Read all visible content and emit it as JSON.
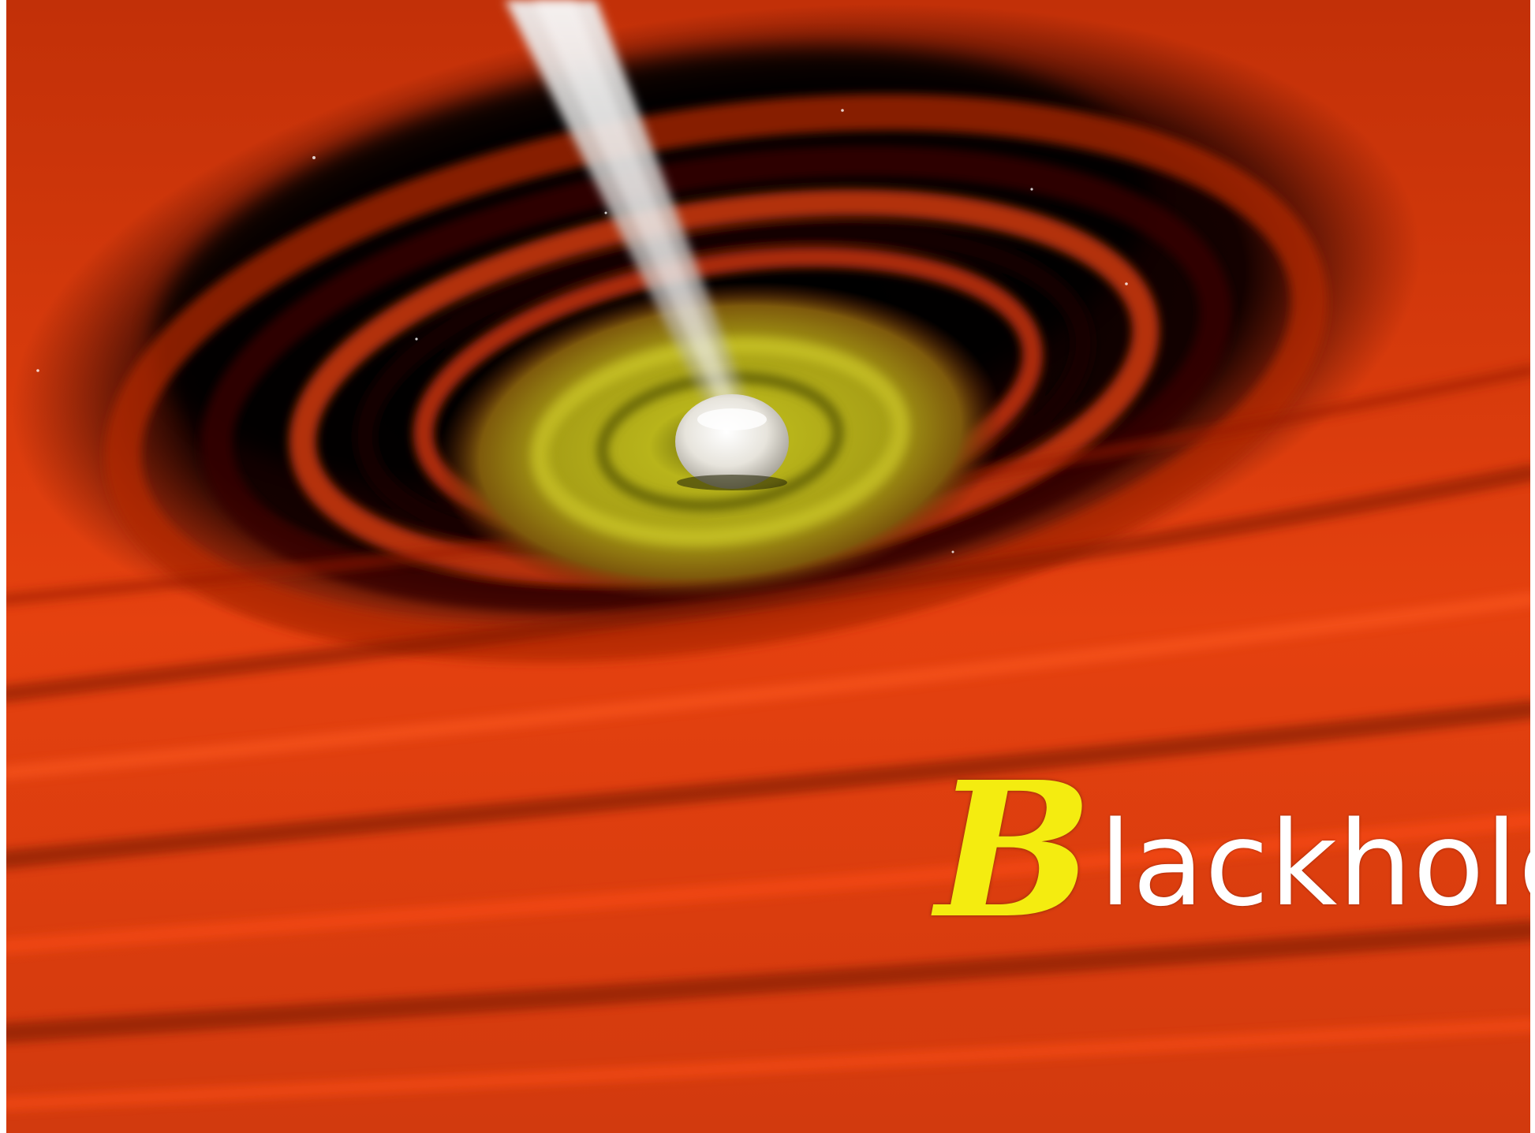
{
  "title": {
    "initial": "B",
    "rest": "lackhole"
  },
  "colors": {
    "disk_red": "#e43a0e",
    "disk_dark": "#2a0400",
    "inner_glow": "#c9c11a",
    "jet": "#d9d6d2",
    "title_initial": "#f4ec10",
    "title_rest": "#ffffff"
  }
}
